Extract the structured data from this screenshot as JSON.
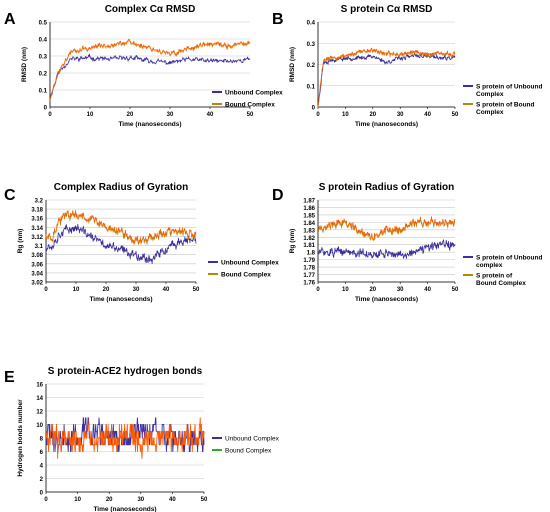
{
  "figure": {
    "panels": [
      {
        "letter": "A",
        "title": "Complex Cα RMSD",
        "ylabel": "RMSD (nm)",
        "xlabel": "Time (nanoseconds)",
        "ylim": [
          0,
          0.5
        ],
        "yticks": [
          "0",
          "0.1",
          "0.2",
          "0.3",
          "0.4",
          "0.5"
        ],
        "xticks": [
          "0",
          "10",
          "20",
          "30",
          "40",
          "50"
        ],
        "legend": [
          "Unbound Complex",
          "Bound Complex"
        ]
      },
      {
        "letter": "B",
        "title": "S protein Cα RMSD",
        "ylabel": "RMSD (nm)",
        "xlabel": "Time (nanoseconds)",
        "ylim": [
          0,
          0.4
        ],
        "yticks": [
          "0",
          "0.1",
          "0.2",
          "0.3",
          "0.4"
        ],
        "xticks": [
          "0",
          "10",
          "20",
          "30",
          "40",
          "50"
        ],
        "legend": [
          "S protein of Unbound Complex",
          "S protein of Bound Complex"
        ]
      },
      {
        "letter": "C",
        "title": "Complex Radius of Gyration",
        "ylabel": "Rg (nm)",
        "xlabel": "Time (nanoseconds)",
        "ylim": [
          3.02,
          3.2
        ],
        "yticks": [
          "3.02",
          "3.04",
          "3.06",
          "3.08",
          "3.1",
          "3.12",
          "3.14",
          "3.16",
          "3.18",
          "3.2"
        ],
        "xticks": [
          "0",
          "10",
          "20",
          "30",
          "40",
          "50"
        ],
        "legend": [
          "Unbound Complex",
          "Bound Complex"
        ]
      },
      {
        "letter": "D",
        "title": "S protein Radius of Gyration",
        "ylabel": "Rg (nm)",
        "xlabel": "Time (nanoseconds)",
        "ylim": [
          1.76,
          1.87
        ],
        "yticks": [
          "1.76",
          "1.77",
          "1.78",
          "1.79",
          "1.8",
          "1.81",
          "1.82",
          "1.83",
          "1.84",
          "1.85",
          "1.86",
          "1.87"
        ],
        "xticks": [
          "0",
          "10",
          "20",
          "30",
          "40",
          "50"
        ],
        "legend": [
          "S protein of Unbound complex",
          "S protein  of Bound Complex"
        ]
      },
      {
        "letter": "E",
        "title": "S protein-ACE2 hydrogen bonds",
        "ylabel": "Hydrogen bonds number",
        "xlabel": "Time (nanoseconds)",
        "ylim": [
          0,
          16
        ],
        "yticks": [
          "0",
          "2",
          "4",
          "6",
          "8",
          "10",
          "12",
          "14",
          "16"
        ],
        "xticks": [
          "0",
          "10",
          "20",
          "30",
          "40",
          "50"
        ],
        "legend": [
          "Unbound Complex",
          "Bound Complex"
        ]
      }
    ]
  },
  "colors": {
    "unbound": "#3b2f9e",
    "bound": "#ff5a00",
    "bound_alt": "#b8860b",
    "bound_green": "#2eaa2e",
    "grid": "#c8c8c8"
  },
  "chart_data": [
    {
      "type": "line",
      "title": "Complex Cα RMSD",
      "xlabel": "Time (nanoseconds)",
      "ylabel": "RMSD (nm)",
      "xlim": [
        0,
        50
      ],
      "ylim": [
        0,
        0.5
      ],
      "grid": true,
      "legend": "right",
      "x": [
        0,
        2,
        5,
        10,
        15,
        20,
        25,
        30,
        35,
        40,
        45,
        50
      ],
      "series": [
        {
          "name": "Unbound Complex",
          "values": [
            0.05,
            0.2,
            0.28,
            0.29,
            0.28,
            0.29,
            0.27,
            0.26,
            0.28,
            0.27,
            0.27,
            0.28
          ]
        },
        {
          "name": "Bound Complex",
          "values": [
            0.05,
            0.2,
            0.32,
            0.35,
            0.37,
            0.38,
            0.35,
            0.31,
            0.35,
            0.37,
            0.36,
            0.38
          ]
        }
      ]
    },
    {
      "type": "line",
      "title": "S protein Cα RMSD",
      "xlabel": "Time (nanoseconds)",
      "ylabel": "RMSD (nm)",
      "xlim": [
        0,
        50
      ],
      "ylim": [
        0,
        0.4
      ],
      "grid": true,
      "legend": "right",
      "x": [
        0,
        2,
        5,
        10,
        15,
        20,
        25,
        30,
        35,
        40,
        45,
        50
      ],
      "series": [
        {
          "name": "S protein of Unbound Complex",
          "values": [
            0.0,
            0.21,
            0.22,
            0.23,
            0.23,
            0.24,
            0.21,
            0.23,
            0.24,
            0.24,
            0.23,
            0.23
          ]
        },
        {
          "name": "S protein of Bound Complex",
          "values": [
            0.0,
            0.22,
            0.23,
            0.24,
            0.26,
            0.27,
            0.25,
            0.25,
            0.26,
            0.25,
            0.25,
            0.25
          ]
        }
      ]
    },
    {
      "type": "line",
      "title": "Complex Radius of Gyration",
      "xlabel": "Time (nanoseconds)",
      "ylabel": "Rg (nm)",
      "xlim": [
        0,
        50
      ],
      "ylim": [
        3.02,
        3.2
      ],
      "grid": true,
      "legend": "right",
      "x": [
        0,
        2,
        5,
        10,
        15,
        20,
        25,
        30,
        35,
        40,
        45,
        50
      ],
      "series": [
        {
          "name": "Unbound Complex",
          "values": [
            3.1,
            3.1,
            3.13,
            3.14,
            3.12,
            3.1,
            3.09,
            3.08,
            3.07,
            3.09,
            3.11,
            3.11
          ]
        },
        {
          "name": "Bound Complex",
          "values": [
            3.12,
            3.12,
            3.16,
            3.17,
            3.16,
            3.14,
            3.13,
            3.11,
            3.12,
            3.13,
            3.13,
            3.12
          ]
        }
      ]
    },
    {
      "type": "line",
      "title": "S protein Radius of Gyration",
      "xlabel": "Time (nanoseconds)",
      "ylabel": "Rg (nm)",
      "xlim": [
        0,
        50
      ],
      "ylim": [
        1.76,
        1.87
      ],
      "grid": true,
      "legend": "right",
      "x": [
        0,
        2,
        5,
        10,
        15,
        20,
        25,
        30,
        35,
        40,
        45,
        50
      ],
      "series": [
        {
          "name": "S protein of Unbound complex",
          "values": [
            1.8,
            1.8,
            1.8,
            1.8,
            1.8,
            1.795,
            1.8,
            1.795,
            1.8,
            1.805,
            1.81,
            1.81
          ]
        },
        {
          "name": "S protein  of Bound Complex",
          "values": [
            1.83,
            1.83,
            1.84,
            1.84,
            1.83,
            1.82,
            1.83,
            1.83,
            1.84,
            1.84,
            1.84,
            1.84
          ]
        }
      ]
    },
    {
      "type": "line",
      "title": "S protein-ACE2 hydrogen bonds",
      "xlabel": "Time (nanoseconds)",
      "ylabel": "Hydrogen bonds number",
      "xlim": [
        0,
        50
      ],
      "ylim": [
        0,
        16
      ],
      "grid": true,
      "legend": "right",
      "x": [
        0,
        5,
        10,
        15,
        20,
        25,
        30,
        35,
        40,
        45,
        50
      ],
      "series": [
        {
          "name": "Unbound Complex",
          "values": [
            8,
            8,
            8,
            9,
            8,
            8,
            9,
            9,
            8,
            8,
            8
          ]
        },
        {
          "name": "Bound Complex",
          "values": [
            8,
            8,
            8,
            8,
            8,
            8,
            8,
            8,
            8,
            8,
            8
          ]
        }
      ]
    }
  ]
}
